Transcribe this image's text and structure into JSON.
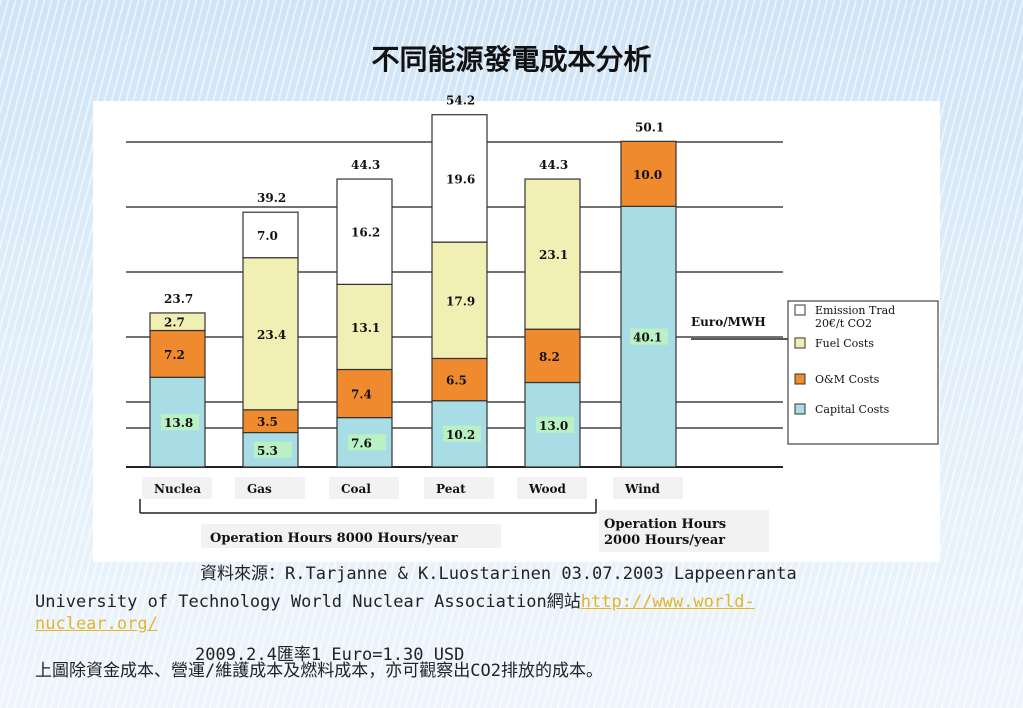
{
  "slide": {
    "title": "不同能源發電成本分析",
    "source_line1": "資料來源：R.Tarjanne & K.Luostarinen 03.07.2003 Lappeenranta",
    "source_line2_text": "University of Technology World Nuclear Association網站",
    "source_link_part1": "http://www.world-",
    "source_link_part2": "nuclear.org/",
    "exchange_rate": "2009.2.4匯率1 Euro=1.30 USD",
    "caption": "上圖除資金成本、營運/維護成本及燃料成本，亦可觀察出CO2排放的成本。"
  },
  "chart_data": {
    "type": "bar",
    "stacked": true,
    "unit_label": "Euro/MWH",
    "categories": [
      "Nuclea",
      "Gas",
      "Coal",
      "Peat",
      "Wood",
      "Wind"
    ],
    "totals": [
      "23.7",
      "39.2",
      "44.3",
      "54.2",
      "44.3",
      "50.1"
    ],
    "series": [
      {
        "name": "Capital Costs",
        "color": "#a9dde6",
        "values": [
          13.8,
          5.3,
          7.6,
          10.2,
          13.0,
          40.1
        ],
        "labels": [
          "13.8",
          "5.3",
          "7.6",
          "10.2",
          "13.0",
          "40.1"
        ]
      },
      {
        "name": "O&M Costs",
        "color": "#ef8a2e",
        "values": [
          7.2,
          3.5,
          7.4,
          6.5,
          8.2,
          10.0
        ],
        "labels": [
          "7.2",
          "3.5",
          "7.4",
          "6.5",
          "8.2",
          "10.0"
        ]
      },
      {
        "name": "Fuel Costs",
        "color": "#f2efb4",
        "values": [
          2.7,
          23.4,
          13.1,
          17.9,
          23.1,
          0
        ],
        "labels": [
          "2.7",
          "23.4",
          "13.1",
          "17.9",
          "23.1",
          ""
        ]
      },
      {
        "name": "Emission Trad 20€/t CO2",
        "color": "#ffffff",
        "values": [
          0,
          7.0,
          16.2,
          19.6,
          0,
          0
        ],
        "labels": [
          "",
          "7.0",
          "16.2",
          "19.6",
          "",
          ""
        ]
      }
    ],
    "legend": {
      "placement": "right",
      "entries": [
        {
          "text": "Emission Trad",
          "text2": "20€/t CO2",
          "color": "#ffffff"
        },
        {
          "text": "Fuel Costs",
          "color": "#f2efb4"
        },
        {
          "text": "O&M Costs",
          "color": "#ef8a2e"
        },
        {
          "text": "Capital Costs",
          "color": "#a9dde6"
        }
      ]
    },
    "operation_hours": [
      {
        "text": "Operation Hours 8000 Hours/year",
        "applies_to": [
          "Nuclea",
          "Gas",
          "Coal",
          "Peat",
          "Wood"
        ]
      },
      {
        "text": "Operation Hours",
        "text2": "2000 Hours/year",
        "applies_to": [
          "Wind"
        ]
      }
    ],
    "grid": true,
    "ylim": [
      0,
      56
    ]
  }
}
